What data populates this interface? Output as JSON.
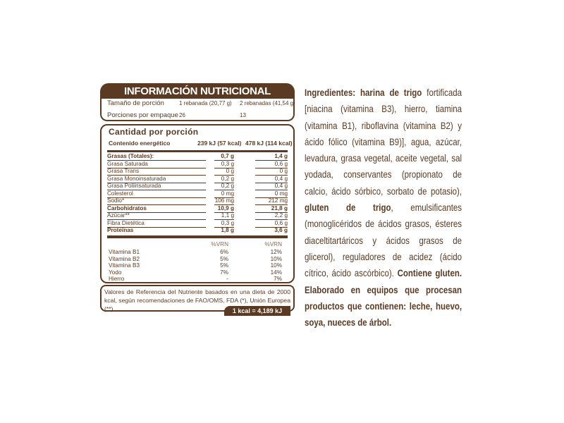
{
  "title": "INFORMACIÓN NUTRICIONAL",
  "serving": {
    "size_label": "Tamaño de porción",
    "size_1": "1 rebanada (20,77 g)",
    "size_2": "2 rebanadas (41,54 g)",
    "per_pkg_label": "Porciones por empaque",
    "per_pkg_1": "26",
    "per_pkg_2": "13"
  },
  "amount": {
    "heading": "Cantidad por porción",
    "energy_label": "Contenido energético",
    "energy_1": "239  kJ (57  kcal)",
    "energy_2": "478  kJ (114  kcal)"
  },
  "nutrients": [
    {
      "name": "Grasas (Totales):",
      "v1": "0,7 g",
      "v2": "1,4 g"
    },
    {
      "name": "Grasa Saturada",
      "v1": "0,3 g",
      "v2": "0,6 g"
    },
    {
      "name": "Grasa Trans",
      "v1": "0 g",
      "v2": "0 g"
    },
    {
      "name": "Grasa Monoinsaturada",
      "v1": "0,2 g",
      "v2": "0,4 g"
    },
    {
      "name": "Grasa Poliinsaturada",
      "v1": "0,2 g",
      "v2": "0,4 g"
    },
    {
      "name": "Colesterol",
      "v1": "0 mg",
      "v2": "0 mg"
    },
    {
      "name": "Sodio*",
      "v1": "106 mg",
      "v2": "212 mg"
    },
    {
      "name": "Carbohidratos",
      "v1": "10,9 g",
      "v2": "21,8 g"
    },
    {
      "name": "Azúcar**",
      "v1": "1,1 g",
      "v2": "2,2 g"
    },
    {
      "name": "Fibra Dietética",
      "v1": "0,3 g",
      "v2": "0,6 g"
    },
    {
      "name": "Proteínas",
      "v1": "1,8 g",
      "v2": "3,6 g"
    }
  ],
  "vrn_header": "%VRN",
  "vitamins": [
    {
      "name": "Vitamina B1",
      "v1": "6%",
      "v2": "12%"
    },
    {
      "name": "Vitamina B2",
      "v1": "5%",
      "v2": "10%"
    },
    {
      "name": "Vitamina B3",
      "v1": "5%",
      "v2": "10%"
    },
    {
      "name": "Yodo",
      "v1": "7%",
      "v2": "14%"
    },
    {
      "name": "Hierro",
      "v1": "-",
      "v2": "7%"
    }
  ],
  "footnote": "Valores de Referencia del Nutriente basados en una dieta de 2000 kcal, según recomendaciones de FAO/OMS, FDA (*), Unión Europea (**).",
  "conversion": "1 kcal = 4,189 kJ",
  "ingredients": {
    "bold1": "Ingredientes: harina de trigo",
    "text1": " fortificada [niacina (vitamina B3), hierro, tiamina (vitamina B1), riboflavina (vitamina B2) y ácido fólico (vitamina B9)], agua, azúcar, levadura, grasa vegetal, aceite vegetal, sal yodada, conservantes (propionato de calcio, ácido sórbico, sorbato de potasio), ",
    "bold2": "gluten de trigo",
    "text2": ", emulsificantes (monoglicéridos de ácidos grasos, ésteres diaceltitartáricos y ácidos grasos de glicerol), reguladores de acidez (ácido cítrico, ácido ascórbico). ",
    "bold3": "Contiene gluten. Elaborado en equipos que procesan productos que contienen: leche, huevo, soya, nueces de árbol."
  },
  "colors": {
    "brand_brown": "#5a3a22"
  }
}
